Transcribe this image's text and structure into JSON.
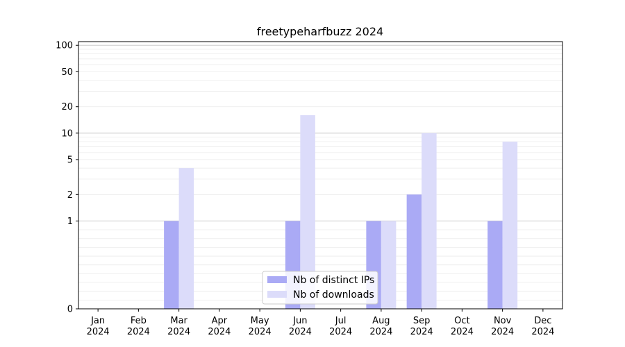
{
  "chart_data": {
    "type": "bar",
    "title": "freetypeharfbuzz 2024",
    "xlabel": "",
    "ylabel": "",
    "categories": [
      "Jan\n2024",
      "Feb\n2024",
      "Mar\n2024",
      "Apr\n2024",
      "May\n2024",
      "Jun\n2024",
      "Jul\n2024",
      "Aug\n2024",
      "Sep\n2024",
      "Oct\n2024",
      "Nov\n2024",
      "Dec\n2024"
    ],
    "series": [
      {
        "name": "Nb of distinct IPs",
        "color": "#aaaaf5",
        "values": [
          0,
          0,
          1,
          0,
          0,
          1,
          0,
          1,
          2,
          0,
          1,
          0
        ]
      },
      {
        "name": "Nb of downloads",
        "color": "#dcdcfa",
        "values": [
          0,
          0,
          4,
          0,
          0,
          16,
          0,
          1,
          10,
          0,
          8,
          0
        ]
      }
    ],
    "yscale": "symlog",
    "ylim": [
      0,
      110
    ],
    "yticks": [
      0,
      1,
      2,
      5,
      10,
      20,
      50,
      100
    ],
    "ytick_labels": [
      "0",
      "1",
      "2",
      "5",
      "10",
      "20",
      "50",
      "100"
    ],
    "grid": true,
    "legend_position": "bottom-center"
  }
}
